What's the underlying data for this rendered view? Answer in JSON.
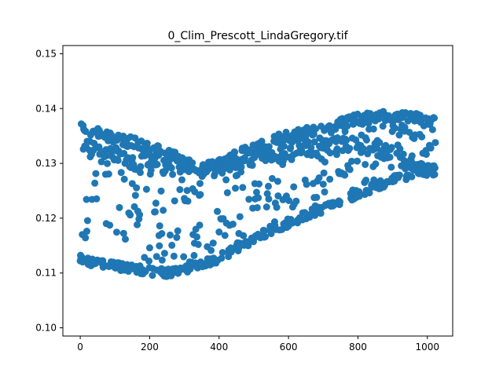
{
  "chart_data": {
    "type": "scatter",
    "title": "0_Clim_Prescott_LindaGregory.tif",
    "xlabel": "",
    "ylabel": "",
    "xlim": [
      -50,
      1073
    ],
    "ylim": [
      0.0985,
      0.1515
    ],
    "xticks": [
      0,
      200,
      400,
      600,
      800,
      1000
    ],
    "xtick_labels": [
      "0",
      "200",
      "400",
      "600",
      "800",
      "1000"
    ],
    "yticks": [
      0.1,
      0.11,
      0.12,
      0.13,
      0.14,
      0.15
    ],
    "ytick_labels": [
      "0.10",
      "0.11",
      "0.12",
      "0.13",
      "0.14",
      "0.15"
    ],
    "grid": false,
    "marker_color": "#1f77b4",
    "series": [
      {
        "x_range": [
          0,
          1023
        ],
        "n_points": 1024,
        "bands": {
          "x_knots": [
            0,
            50,
            100,
            150,
            200,
            250,
            300,
            350,
            400,
            450,
            500,
            550,
            600,
            650,
            700,
            750,
            800,
            850,
            900,
            950,
            1000,
            1023
          ],
          "upper": [
            0.1365,
            0.1355,
            0.1345,
            0.1338,
            0.133,
            0.132,
            0.1305,
            0.129,
            0.13,
            0.1315,
            0.1325,
            0.134,
            0.135,
            0.1355,
            0.1365,
            0.1375,
            0.138,
            0.1385,
            0.1385,
            0.1385,
            0.138,
            0.1375
          ],
          "middle": [
            0.1335,
            0.132,
            0.131,
            0.1305,
            0.13,
            0.1298,
            0.1295,
            0.129,
            0.1295,
            0.13,
            0.131,
            0.1315,
            0.132,
            0.1325,
            0.133,
            0.1335,
            0.1335,
            0.133,
            0.1315,
            0.13,
            0.129,
            0.1285
          ],
          "lower": [
            0.1125,
            0.1118,
            0.1112,
            0.1108,
            0.1103,
            0.1101,
            0.1105,
            0.1115,
            0.1128,
            0.1145,
            0.1162,
            0.1178,
            0.1192,
            0.1205,
            0.1218,
            0.1232,
            0.1245,
            0.1258,
            0.127,
            0.128,
            0.1285,
            0.1285
          ]
        }
      }
    ]
  }
}
